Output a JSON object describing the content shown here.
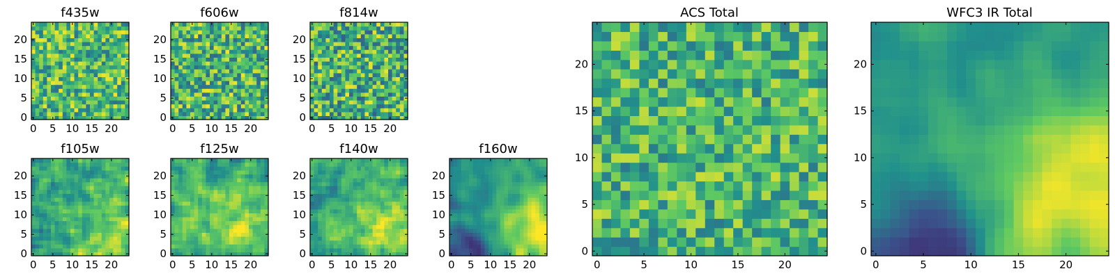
{
  "chart_data": [
    {
      "type": "heatmap",
      "title": "f435w",
      "xlim": [
        0,
        24
      ],
      "ylim": [
        0,
        24
      ],
      "xticks": [
        "0",
        "5",
        "10",
        "15",
        "20"
      ],
      "yticks": [
        "0",
        "5",
        "10",
        "15",
        "20"
      ],
      "field": {
        "mean": 0.68,
        "noise": 0.3,
        "seed": 11,
        "smooth": 0,
        "lowlight": null,
        "trend": null
      }
    },
    {
      "type": "heatmap",
      "title": "f606w",
      "xlim": [
        0,
        24
      ],
      "ylim": [
        0,
        24
      ],
      "xticks": [
        "0",
        "5",
        "10",
        "15",
        "20"
      ],
      "yticks": [
        "0",
        "5",
        "10",
        "15",
        "20"
      ],
      "field": {
        "mean": 0.66,
        "noise": 0.32,
        "seed": 23,
        "smooth": 0,
        "lowlight": null,
        "trend": null
      }
    },
    {
      "type": "heatmap",
      "title": "f814w",
      "xlim": [
        0,
        24
      ],
      "ylim": [
        0,
        24
      ],
      "xticks": [
        "0",
        "5",
        "10",
        "15",
        "20"
      ],
      "yticks": [
        "0",
        "5",
        "10",
        "15",
        "20"
      ],
      "field": {
        "mean": 0.64,
        "noise": 0.34,
        "seed": 37,
        "smooth": 0,
        "lowlight": null,
        "trend": null
      }
    },
    {
      "type": "heatmap",
      "title": "f105w",
      "xlim": [
        0,
        24
      ],
      "ylim": [
        0,
        24
      ],
      "xticks": [
        "0",
        "5",
        "10",
        "15",
        "20"
      ],
      "yticks": [
        "0",
        "5",
        "10",
        "15",
        "20"
      ],
      "field": {
        "mean": 0.62,
        "noise": 0.28,
        "seed": 41,
        "smooth": 1,
        "lowlight": null,
        "trend": {
          "peak": [
            20,
            6
          ],
          "amp": 0.22,
          "spread": 7
        }
      }
    },
    {
      "type": "heatmap",
      "title": "f125w",
      "xlim": [
        0,
        24
      ],
      "ylim": [
        0,
        24
      ],
      "xticks": [
        "0",
        "5",
        "10",
        "15",
        "20"
      ],
      "yticks": [
        "0",
        "5",
        "10",
        "15",
        "20"
      ],
      "field": {
        "mean": 0.6,
        "noise": 0.28,
        "seed": 53,
        "smooth": 1,
        "lowlight": null,
        "trend": {
          "peak": [
            19,
            7
          ],
          "amp": 0.24,
          "spread": 8
        }
      }
    },
    {
      "type": "heatmap",
      "title": "f140w",
      "xlim": [
        0,
        24
      ],
      "ylim": [
        0,
        24
      ],
      "xticks": [
        "0",
        "5",
        "10",
        "15",
        "20"
      ],
      "yticks": [
        "0",
        "5",
        "10",
        "15",
        "20"
      ],
      "field": {
        "mean": 0.58,
        "noise": 0.24,
        "seed": 67,
        "smooth": 1,
        "lowlight": null,
        "trend": {
          "peak": [
            21,
            6
          ],
          "amp": 0.28,
          "spread": 8
        }
      }
    },
    {
      "type": "heatmap",
      "title": "f160w",
      "xlim": [
        0,
        24
      ],
      "ylim": [
        0,
        24
      ],
      "xticks": [
        "0",
        "5",
        "10",
        "15",
        "20"
      ],
      "yticks": [
        "0",
        "5",
        "10",
        "15",
        "20"
      ],
      "field": {
        "mean": 0.48,
        "noise": 0.18,
        "seed": 79,
        "smooth": 2,
        "lowlight": {
          "center": [
            5,
            1
          ],
          "amp": 0.3,
          "spread": 4
        },
        "trend": {
          "peak": [
            22,
            6
          ],
          "amp": 0.45,
          "spread": 8
        }
      }
    },
    {
      "type": "heatmap",
      "title": "ACS Total",
      "xlim": [
        0,
        24
      ],
      "ylim": [
        0,
        24
      ],
      "xticks": [
        "0",
        "5",
        "10",
        "15",
        "20"
      ],
      "yticks": [
        "0",
        "5",
        "10",
        "15",
        "20"
      ],
      "field": {
        "mean": 0.66,
        "noise": 0.26,
        "seed": 97,
        "smooth": 0,
        "lowlight": null,
        "trend": null
      }
    },
    {
      "type": "heatmap",
      "title": "WFC3 IR Total",
      "xlim": [
        0,
        24
      ],
      "ylim": [
        0,
        24
      ],
      "xticks": [
        "0",
        "5",
        "10",
        "15",
        "20"
      ],
      "yticks": [
        "0",
        "5",
        "10",
        "15",
        "20"
      ],
      "field": {
        "mean": 0.5,
        "noise": 0.14,
        "seed": 131,
        "smooth": 2,
        "lowlight": {
          "center": [
            6,
            1
          ],
          "amp": 0.4,
          "spread": 4
        },
        "trend": {
          "peak": [
            22,
            6
          ],
          "amp": 0.5,
          "spread": 8
        }
      }
    }
  ],
  "colormap": [
    "#440154",
    "#3b528b",
    "#21918c",
    "#5ec962",
    "#fde725"
  ]
}
